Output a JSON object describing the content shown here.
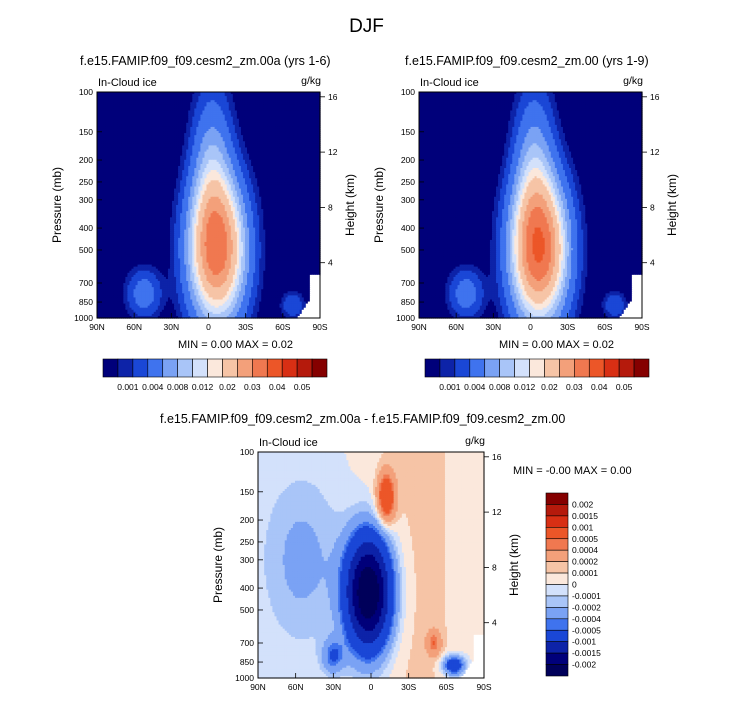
{
  "figure": {
    "title": "DJF"
  },
  "panels": [
    {
      "title": "f.e15.FAMIP.f09_f09.cesm2_zm.00a (yrs 1-6)",
      "left_label": "In-Cloud ice",
      "right_label": "g/kg",
      "ylabel": "Pressure (mb)",
      "ylabel_right": "Height (km)",
      "stats": "MIN =   0.00  MAX =   0.02",
      "peak": 0.022
    },
    {
      "title": "f.e15.FAMIP.f09_f09.cesm2_zm.00 (yrs 1-9)",
      "left_label": "In-Cloud ice",
      "right_label": "g/kg",
      "ylabel": "Pressure (mb)",
      "ylabel_right": "Height (km)",
      "stats": "MIN =   0.00  MAX =   0.02",
      "peak": 0.024
    },
    {
      "title": "f.e15.FAMIP.f09_f09.cesm2_zm.00a - f.e15.FAMIP.f09_f09.cesm2_zm.00",
      "left_label": "In-Cloud ice",
      "right_label": "g/kg",
      "ylabel": "Pressure (mb)",
      "ylabel_right": "Height (km)",
      "stats": "MIN =  -0.00  MAX =   0.00"
    }
  ],
  "chart_data": {
    "type": "heatmap",
    "x_tick_labels": [
      "90N",
      "60N",
      "30N",
      "0",
      "30S",
      "60S",
      "90S"
    ],
    "x_values": [
      90,
      60,
      30,
      0,
      -30,
      -60,
      -90
    ],
    "y_left_ticks": [
      100,
      150,
      200,
      250,
      300,
      400,
      500,
      700,
      850,
      1000
    ],
    "y_right_ticks": [
      16,
      12,
      8,
      4
    ],
    "ylim": [
      1000,
      100
    ],
    "y_scale": "log",
    "field_levels": [
      0.001,
      0.004,
      0.008,
      0.012,
      0.02,
      0.03,
      0.04,
      0.05
    ],
    "field_level_labels": [
      "0.001",
      "0.004",
      "0.008",
      "0.012",
      "0.02",
      "0.03",
      "0.04",
      "0.05"
    ],
    "field_colors": [
      "#00007a",
      "#0d23a8",
      "#1a47d6",
      "#3f73ee",
      "#7aa2f4",
      "#a9c5f8",
      "#d3e1fb",
      "#fbe8dc",
      "#f6c4a6",
      "#f3a07a",
      "#f07850",
      "#ec5628",
      "#d82f14",
      "#b51a0c",
      "#850000"
    ],
    "diff_levels": [
      -0.002,
      -0.0015,
      -0.001,
      -0.0005,
      -0.0004,
      -0.0002,
      -0.0001,
      0,
      0.0001,
      0.0002,
      0.0004,
      0.0005,
      0.001,
      0.0015,
      0.002
    ],
    "diff_level_labels": [
      "0.002",
      "0.0015",
      "0.001",
      "0.0005",
      "0.0004",
      "0.0002",
      "0.0001",
      "0",
      "-0.0001",
      "-0.0002",
      "-0.0004",
      "-0.0005",
      "-0.001",
      "-0.0015",
      "-0.002"
    ],
    "diff_colors": [
      "#850000",
      "#b51a0c",
      "#d82f14",
      "#ec5628",
      "#f07850",
      "#f3a07a",
      "#f6c4a6",
      "#fbe8dc",
      "#d3e1fb",
      "#a9c5f8",
      "#7aa2f4",
      "#3f73ee",
      "#1a47d6",
      "#0d23a8",
      "#00007a",
      "#00005a"
    ]
  }
}
